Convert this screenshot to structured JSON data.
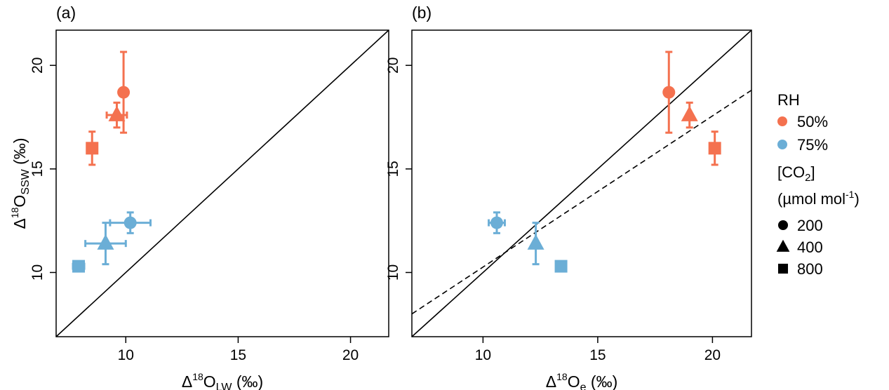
{
  "colors": {
    "rh50": "#f4714f",
    "rh75": "#6baed6",
    "line": "#000000"
  },
  "legend": {
    "rh_title": "RH",
    "rh_items": [
      {
        "label": "50%",
        "color": "#f4714f"
      },
      {
        "label": "75%",
        "color": "#6baed6"
      }
    ],
    "co2_title_main": "[CO",
    "co2_title_sub": "2",
    "co2_title_close": "]",
    "co2_units_main": "(µmol mol",
    "co2_units_sup": "-1",
    "co2_units_close": ")",
    "co2_items": [
      {
        "label": "200",
        "shape": "circle"
      },
      {
        "label": "400",
        "shape": "triangle"
      },
      {
        "label": "800",
        "shape": "square"
      }
    ]
  },
  "chart_data": [
    {
      "type": "scatter",
      "panel_label": "(a)",
      "xlabel": {
        "delta": "Δ",
        "sup": "18",
        "main": "O",
        "sub": "LW",
        "unit": " (‰)"
      },
      "ylabel": {
        "delta": "Δ",
        "sup": "18",
        "main": "O",
        "sub": "SSW",
        "unit": " (‰)"
      },
      "xlim": [
        6.9,
        21.7
      ],
      "ylim": [
        6.9,
        21.7
      ],
      "xticks": [
        10,
        15,
        20
      ],
      "yticks": [
        10,
        15,
        20
      ],
      "points": [
        {
          "rh": "50%",
          "co2": 200,
          "x": 9.9,
          "y": 18.7,
          "xerr": 0.0,
          "yerr": 1.95
        },
        {
          "rh": "50%",
          "co2": 400,
          "x": 9.6,
          "y": 17.6,
          "xerr": 0.45,
          "yerr": 0.6
        },
        {
          "rh": "50%",
          "co2": 800,
          "x": 8.5,
          "y": 16.0,
          "xerr": 0.0,
          "yerr": 0.8
        },
        {
          "rh": "75%",
          "co2": 200,
          "x": 10.2,
          "y": 12.4,
          "xerr": 0.9,
          "yerr": 0.5
        },
        {
          "rh": "75%",
          "co2": 400,
          "x": 9.1,
          "y": 11.4,
          "xerr": 0.9,
          "yerr": 1.0
        },
        {
          "rh": "75%",
          "co2": 800,
          "x": 7.9,
          "y": 10.3,
          "xerr": 0.25,
          "yerr": 0.0
        }
      ],
      "lines": [
        {
          "style": "solid",
          "x": [
            6.9,
            21.7
          ],
          "y": [
            6.9,
            21.7
          ]
        }
      ]
    },
    {
      "type": "scatter",
      "panel_label": "(b)",
      "xlabel": {
        "delta": "Δ",
        "sup": "18",
        "main": "O",
        "sub": "e",
        "unit": " (‰)"
      },
      "ylabel": null,
      "xlim": [
        6.9,
        21.7
      ],
      "ylim": [
        6.9,
        21.7
      ],
      "xticks": [
        10,
        15,
        20
      ],
      "yticks": [
        10,
        15,
        20
      ],
      "points": [
        {
          "rh": "50%",
          "co2": 200,
          "x": 18.1,
          "y": 18.7,
          "xerr": 0.0,
          "yerr": 1.95
        },
        {
          "rh": "50%",
          "co2": 400,
          "x": 19.0,
          "y": 17.6,
          "xerr": 0.0,
          "yerr": 0.6
        },
        {
          "rh": "50%",
          "co2": 800,
          "x": 20.1,
          "y": 16.0,
          "xerr": 0.0,
          "yerr": 0.8
        },
        {
          "rh": "75%",
          "co2": 200,
          "x": 10.6,
          "y": 12.4,
          "xerr": 0.35,
          "yerr": 0.5
        },
        {
          "rh": "75%",
          "co2": 400,
          "x": 12.3,
          "y": 11.4,
          "xerr": 0.0,
          "yerr": 1.0
        },
        {
          "rh": "75%",
          "co2": 800,
          "x": 13.4,
          "y": 10.3,
          "xerr": 0.0,
          "yerr": 0.0
        }
      ],
      "lines": [
        {
          "style": "solid",
          "x": [
            6.9,
            21.7
          ],
          "y": [
            6.9,
            21.7
          ]
        },
        {
          "style": "dashed",
          "x": [
            6.9,
            21.7
          ],
          "y": [
            8.0,
            18.8
          ]
        }
      ]
    }
  ]
}
